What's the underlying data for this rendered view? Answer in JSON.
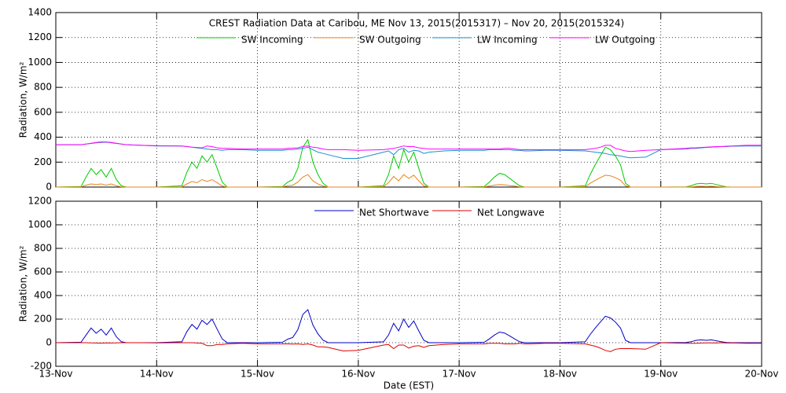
{
  "chart_data": [
    {
      "type": "line",
      "title": "CREST Radiation Data at Caribou, ME   Nov 13, 2015(2015317) – Nov 20, 2015(2015324)",
      "y_label": "Radiation, W/m²",
      "xlim": [
        0,
        7
      ],
      "xticks": [
        0,
        1,
        2,
        3,
        4,
        5,
        6,
        7
      ],
      "ylim": [
        0,
        1400
      ],
      "yticks": [
        0,
        200,
        400,
        600,
        800,
        1000,
        1200,
        1400
      ],
      "grid": true,
      "x": [
        0,
        0.25,
        0.3,
        0.35,
        0.4,
        0.45,
        0.5,
        0.55,
        0.6,
        0.65,
        0.7,
        0.85,
        1,
        1.25,
        1.3,
        1.35,
        1.4,
        1.45,
        1.5,
        1.55,
        1.6,
        1.65,
        1.7,
        1.85,
        2,
        2.25,
        2.3,
        2.35,
        2.4,
        2.45,
        2.5,
        2.55,
        2.6,
        2.65,
        2.7,
        2.85,
        3,
        3.25,
        3.3,
        3.35,
        3.4,
        3.45,
        3.5,
        3.55,
        3.6,
        3.65,
        3.7,
        3.85,
        4,
        4.25,
        4.3,
        4.35,
        4.4,
        4.45,
        4.5,
        4.55,
        4.6,
        4.65,
        4.7,
        4.85,
        5,
        5.25,
        5.3,
        5.35,
        5.4,
        5.45,
        5.5,
        5.55,
        5.6,
        5.65,
        5.7,
        5.85,
        6,
        6.25,
        6.3,
        6.35,
        6.4,
        6.45,
        6.5,
        6.55,
        6.6,
        6.65,
        6.7,
        6.85,
        7
      ],
      "series": [
        {
          "name": "SW Incoming",
          "color": "#00cc00",
          "values": [
            0,
            5,
            80,
            150,
            100,
            140,
            80,
            150,
            60,
            10,
            0,
            0,
            0,
            10,
            120,
            200,
            150,
            250,
            200,
            260,
            150,
            40,
            0,
            0,
            0,
            5,
            40,
            60,
            150,
            320,
            380,
            200,
            100,
            30,
            0,
            0,
            0,
            10,
            100,
            250,
            150,
            300,
            200,
            280,
            150,
            30,
            0,
            0,
            0,
            5,
            40,
            80,
            110,
            100,
            70,
            40,
            10,
            0,
            0,
            0,
            0,
            10,
            100,
            180,
            250,
            320,
            300,
            250,
            180,
            30,
            0,
            0,
            0,
            2,
            10,
            25,
            30,
            25,
            30,
            20,
            10,
            2,
            0,
            0,
            0
          ]
        },
        {
          "name": "SW Outgoing",
          "color": "#e8851c",
          "values": [
            0,
            1,
            15,
            25,
            20,
            25,
            15,
            25,
            10,
            2,
            0,
            0,
            0,
            2,
            25,
            45,
            35,
            60,
            45,
            60,
            35,
            8,
            0,
            0,
            0,
            1,
            10,
            15,
            40,
            80,
            100,
            50,
            25,
            8,
            0,
            0,
            0,
            3,
            35,
            85,
            50,
            100,
            70,
            95,
            50,
            10,
            0,
            0,
            0,
            1,
            8,
            15,
            20,
            18,
            12,
            8,
            2,
            0,
            0,
            0,
            0,
            3,
            30,
            55,
            75,
            95,
            90,
            75,
            55,
            10,
            0,
            0,
            0,
            0,
            2,
            5,
            6,
            5,
            6,
            4,
            2,
            0,
            0,
            0,
            0
          ]
        },
        {
          "name": "LW Incoming",
          "color": "#1a8fd0",
          "values": [
            340,
            340,
            345,
            350,
            355,
            358,
            360,
            355,
            350,
            345,
            340,
            335,
            330,
            330,
            325,
            320,
            315,
            310,
            305,
            300,
            300,
            295,
            300,
            300,
            295,
            295,
            300,
            300,
            305,
            310,
            320,
            300,
            280,
            270,
            260,
            230,
            230,
            280,
            290,
            260,
            300,
            310,
            280,
            295,
            290,
            270,
            280,
            290,
            295,
            295,
            300,
            300,
            300,
            300,
            300,
            295,
            295,
            290,
            290,
            295,
            295,
            290,
            285,
            280,
            275,
            270,
            260,
            255,
            250,
            240,
            235,
            240,
            300,
            305,
            310,
            310,
            315,
            318,
            320,
            322,
            325,
            325,
            328,
            330,
            330
          ]
        },
        {
          "name": "LW Outgoing",
          "color": "#ff00ff",
          "values": [
            340,
            340,
            345,
            352,
            358,
            362,
            362,
            358,
            352,
            345,
            340,
            335,
            332,
            330,
            325,
            320,
            318,
            315,
            330,
            325,
            315,
            310,
            310,
            305,
            305,
            305,
            310,
            312,
            315,
            325,
            330,
            320,
            315,
            305,
            300,
            300,
            295,
            300,
            305,
            310,
            320,
            330,
            325,
            325,
            315,
            310,
            305,
            305,
            305,
            305,
            305,
            305,
            305,
            310,
            310,
            305,
            300,
            300,
            300,
            300,
            300,
            300,
            305,
            310,
            320,
            335,
            335,
            310,
            300,
            290,
            285,
            295,
            300,
            310,
            315,
            315,
            318,
            320,
            322,
            325,
            325,
            328,
            330,
            335,
            335
          ]
        }
      ]
    },
    {
      "type": "line",
      "y_label": "Radiation, W/m²",
      "x_label": "Date (EST)",
      "xlim": [
        0,
        7
      ],
      "xticks": [
        {
          "value": 0,
          "label": "13-Nov"
        },
        {
          "value": 1,
          "label": "14-Nov"
        },
        {
          "value": 2,
          "label": "15-Nov"
        },
        {
          "value": 3,
          "label": "16-Nov"
        },
        {
          "value": 4,
          "label": "17-Nov"
        },
        {
          "value": 5,
          "label": "18-Nov"
        },
        {
          "value": 6,
          "label": "19-Nov"
        },
        {
          "value": 7,
          "label": "20-Nov"
        }
      ],
      "ylim": [
        -200,
        1200
      ],
      "yticks": [
        -200,
        0,
        200,
        400,
        600,
        800,
        1000,
        1200
      ],
      "grid": true,
      "x": [
        0,
        0.25,
        0.3,
        0.35,
        0.4,
        0.45,
        0.5,
        0.55,
        0.6,
        0.65,
        0.7,
        0.85,
        1,
        1.25,
        1.3,
        1.35,
        1.4,
        1.45,
        1.5,
        1.55,
        1.6,
        1.65,
        1.7,
        1.85,
        2,
        2.25,
        2.3,
        2.35,
        2.4,
        2.45,
        2.5,
        2.55,
        2.6,
        2.65,
        2.7,
        2.85,
        3,
        3.25,
        3.3,
        3.35,
        3.4,
        3.45,
        3.5,
        3.55,
        3.6,
        3.65,
        3.7,
        3.85,
        4,
        4.25,
        4.3,
        4.35,
        4.4,
        4.45,
        4.5,
        4.55,
        4.6,
        4.65,
        4.7,
        4.85,
        5,
        5.25,
        5.3,
        5.35,
        5.4,
        5.45,
        5.5,
        5.55,
        5.6,
        5.65,
        5.7,
        5.85,
        6,
        6.25,
        6.3,
        6.35,
        6.4,
        6.45,
        6.5,
        6.55,
        6.6,
        6.65,
        6.7,
        6.85,
        7
      ],
      "series": [
        {
          "name": "Net Shortwave",
          "color": "#0000c8",
          "values": [
            0,
            4,
            65,
            125,
            80,
            115,
            65,
            125,
            50,
            8,
            0,
            0,
            0,
            8,
            95,
            155,
            115,
            190,
            155,
            200,
            115,
            32,
            0,
            0,
            0,
            4,
            30,
            45,
            110,
            240,
            280,
            150,
            75,
            22,
            0,
            0,
            0,
            7,
            65,
            165,
            100,
            200,
            130,
            185,
            100,
            20,
            0,
            0,
            0,
            4,
            32,
            65,
            90,
            82,
            58,
            32,
            8,
            0,
            0,
            0,
            0,
            7,
            70,
            125,
            175,
            225,
            210,
            175,
            125,
            20,
            0,
            0,
            0,
            2,
            8,
            20,
            24,
            20,
            24,
            16,
            8,
            2,
            0,
            0,
            0
          ]
        },
        {
          "name": "Net Longwave",
          "color": "#e00000",
          "values": [
            0,
            0,
            0,
            -2,
            -3,
            -4,
            -2,
            -3,
            -2,
            0,
            0,
            0,
            -2,
            0,
            0,
            0,
            -3,
            -5,
            -25,
            -25,
            -15,
            -15,
            -10,
            -5,
            -10,
            -10,
            -10,
            -12,
            -10,
            -15,
            -10,
            -20,
            -35,
            -35,
            -40,
            -70,
            -65,
            -20,
            -15,
            -50,
            -20,
            -20,
            -45,
            -30,
            -25,
            -40,
            -25,
            -15,
            -10,
            -10,
            -5,
            -5,
            -5,
            -10,
            -10,
            -10,
            -5,
            -10,
            -10,
            -5,
            -5,
            -10,
            -20,
            -30,
            -45,
            -65,
            -75,
            -55,
            -50,
            -50,
            -50,
            -55,
            0,
            -5,
            -5,
            -5,
            -3,
            -2,
            -2,
            -3,
            0,
            -3,
            -2,
            -5,
            -5
          ]
        }
      ]
    }
  ]
}
